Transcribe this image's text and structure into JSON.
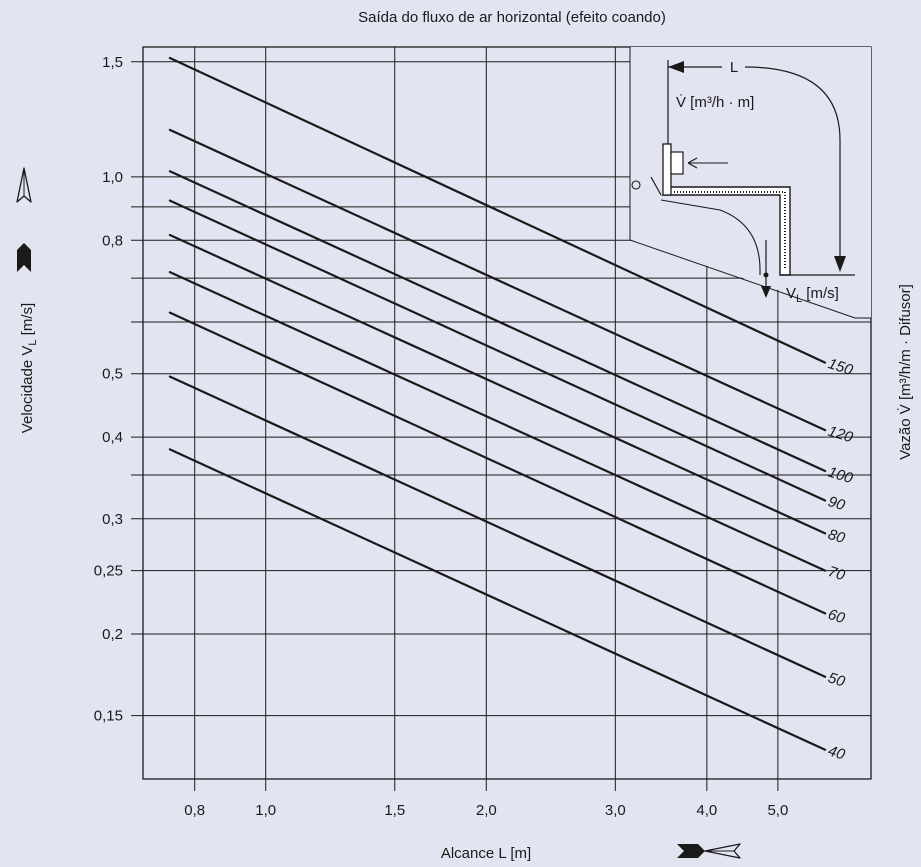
{
  "chart_data": {
    "type": "line",
    "title": "Saída do fluxo de ar horizontal (efeito coando)",
    "xlabel": "Alcance L [m]",
    "ylabel": "Velocidade V",
    "ylabel_sub": "L",
    "ylabel_unit": " [m/s]",
    "y2label": "Vazão V̇ [m³/h/m · Difusor]",
    "x_scale": "log",
    "y_scale": "log",
    "xlim": [
      0.68,
      6.7
    ],
    "ylim": [
      0.12,
      1.58
    ],
    "x_ticks": [
      {
        "v": 0.8,
        "label": "0,8"
      },
      {
        "v": 1.0,
        "label": "1,0"
      },
      {
        "v": 1.5,
        "label": "1,5"
      },
      {
        "v": 2.0,
        "label": "2,0"
      },
      {
        "v": 3.0,
        "label": "3,0"
      },
      {
        "v": 4.0,
        "label": "4,0"
      },
      {
        "v": 5.0,
        "label": "5,0"
      }
    ],
    "y_ticks": [
      {
        "v": 1.5,
        "label": "1,5"
      },
      {
        "v": 1.0,
        "label": "1,0"
      },
      {
        "v": 0.9,
        "label": ""
      },
      {
        "v": 0.8,
        "label": "0,8"
      },
      {
        "v": 0.7,
        "label": ""
      },
      {
        "v": 0.6,
        "label": ""
      },
      {
        "v": 0.5,
        "label": "0,5"
      },
      {
        "v": 0.4,
        "label": "0,4"
      },
      {
        "v": 0.35,
        "label": ""
      },
      {
        "v": 0.3,
        "label": "0,3"
      },
      {
        "v": 0.25,
        "label": "0,25"
      },
      {
        "v": 0.2,
        "label": "0,2"
      },
      {
        "v": 0.15,
        "label": "0,15"
      }
    ],
    "grid": true,
    "series": [
      {
        "name": "150",
        "points": [
          [
            0.74,
            1.52
          ],
          [
            5.8,
            0.52
          ]
        ]
      },
      {
        "name": "120",
        "points": [
          [
            0.74,
            1.18
          ],
          [
            5.8,
            0.41
          ]
        ]
      },
      {
        "name": "100",
        "points": [
          [
            0.74,
            1.02
          ],
          [
            5.8,
            0.355
          ]
        ]
      },
      {
        "name": "90",
        "points": [
          [
            0.74,
            0.92
          ],
          [
            5.8,
            0.32
          ]
        ]
      },
      {
        "name": "80",
        "points": [
          [
            0.74,
            0.815
          ],
          [
            5.8,
            0.285
          ]
        ]
      },
      {
        "name": "70",
        "points": [
          [
            0.74,
            0.715
          ],
          [
            5.8,
            0.25
          ]
        ]
      },
      {
        "name": "60",
        "points": [
          [
            0.74,
            0.62
          ],
          [
            5.8,
            0.215
          ]
        ]
      },
      {
        "name": "50",
        "points": [
          [
            0.74,
            0.495
          ],
          [
            5.8,
            0.172
          ]
        ]
      },
      {
        "name": "40",
        "points": [
          [
            0.74,
            0.383
          ],
          [
            5.8,
            0.133
          ]
        ]
      }
    ]
  },
  "inset": {
    "l_label": "L",
    "flow_label": "V̇ [m³/h · m]",
    "velocity_label": "V",
    "velocity_sub": "L",
    "velocity_unit": " [m/s]"
  },
  "colors": {
    "background": "#e3e4f2",
    "plot_background": "#e3e4f2",
    "line": "#1a1a1a",
    "grid": "#1a1a1a"
  }
}
